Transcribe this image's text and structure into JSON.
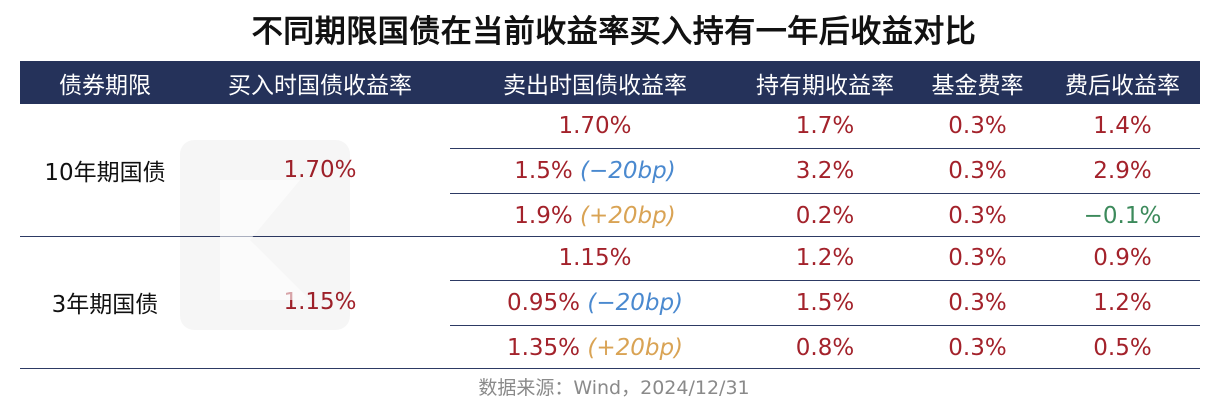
{
  "title": "不同期限国债在当前收益率买入持有一年后收益对比",
  "headers": [
    "债券期限",
    "买入时国债收益率",
    "卖出时国债收益率",
    "持有期收益率",
    "基金费率",
    "费后收益率"
  ],
  "groups": [
    {
      "term": "10年期国债",
      "buy_yield": "1.70%",
      "rows": [
        {
          "sell": "1.70%",
          "bp": "",
          "bp_type": "none",
          "hold": "1.7%",
          "fee": "0.3%",
          "net": "1.4%",
          "net_color": "red"
        },
        {
          "sell": "1.5%",
          "bp": "(−20bp)",
          "bp_type": "down",
          "hold": "3.2%",
          "fee": "0.3%",
          "net": "2.9%",
          "net_color": "red"
        },
        {
          "sell": "1.9%",
          "bp": "(+20bp)",
          "bp_type": "up",
          "hold": "0.2%",
          "fee": "0.3%",
          "net": "−0.1%",
          "net_color": "green"
        }
      ]
    },
    {
      "term": "3年期国债",
      "buy_yield": "1.15%",
      "rows": [
        {
          "sell": "1.15%",
          "bp": "",
          "bp_type": "none",
          "hold": "1.2%",
          "fee": "0.3%",
          "net": "0.9%",
          "net_color": "red"
        },
        {
          "sell": "0.95%",
          "bp": "(−20bp)",
          "bp_type": "down",
          "hold": "1.5%",
          "fee": "0.3%",
          "net": "1.2%",
          "net_color": "red"
        },
        {
          "sell": "1.35%",
          "bp": "(+20bp)",
          "bp_type": "up",
          "hold": "0.8%",
          "fee": "0.3%",
          "net": "0.5%",
          "net_color": "red"
        }
      ]
    }
  ],
  "source": "数据来源：Wind，2024/12/31",
  "colors": {
    "header_bg": "#25325a",
    "value_red": "#a3222b",
    "value_green": "#3c8a5b",
    "bp_blue": "#4a89cf",
    "bp_orange": "#d9a354"
  }
}
